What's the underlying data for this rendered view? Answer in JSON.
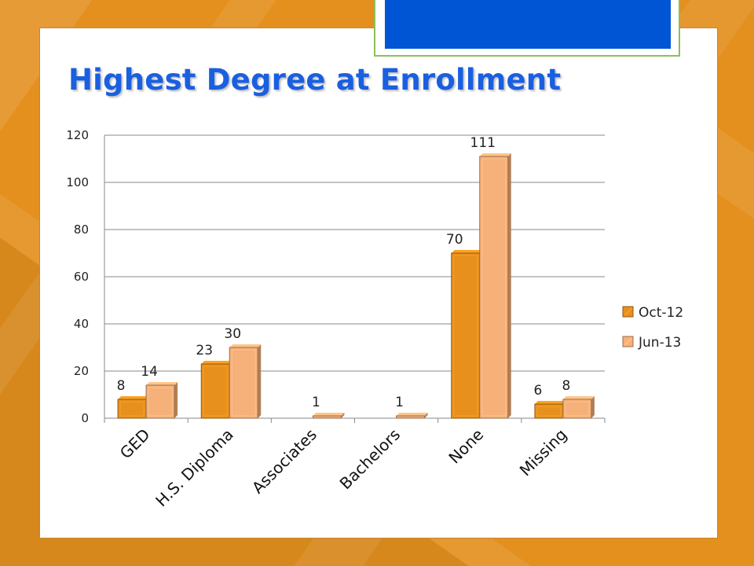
{
  "slide": {
    "title": "Highest Degree at Enrollment"
  },
  "colors": {
    "background": "#e3901f",
    "title": "#1a5fe0",
    "badge": "#0055d4",
    "badge_border": "#8dbf5a",
    "series_oct": "#e8901e",
    "series_jun": "#f6b07a"
  },
  "chart_data": {
    "type": "bar",
    "title": "",
    "xlabel": "",
    "ylabel": "",
    "categories": [
      "GED",
      "H.S. Diploma",
      "Associates",
      "Bachelors",
      "None",
      "Missing"
    ],
    "series": [
      {
        "name": "Oct-12",
        "values": [
          8,
          23,
          0,
          0,
          70,
          6
        ],
        "labels": [
          "8",
          "23",
          "",
          "",
          "70",
          "6"
        ]
      },
      {
        "name": "Jun-13",
        "values": [
          14,
          30,
          1,
          1,
          111,
          8
        ],
        "labels": [
          "14",
          "30",
          "1",
          "1",
          "111",
          "8"
        ]
      }
    ],
    "ylim": [
      0,
      120
    ],
    "yticks": [
      0,
      20,
      40,
      60,
      80,
      100,
      120
    ],
    "grid": true,
    "legend_position": "right",
    "bar_style": "3d"
  }
}
